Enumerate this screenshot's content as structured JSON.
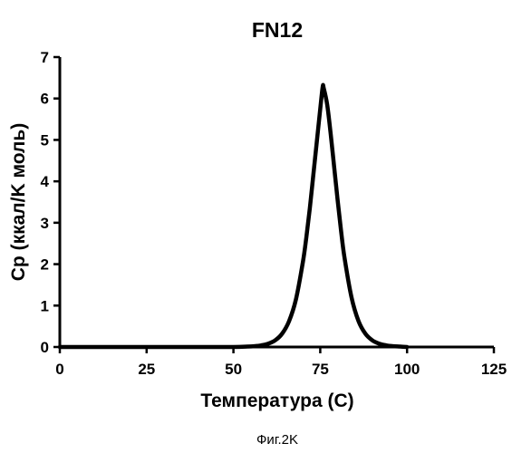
{
  "chart_data": {
    "type": "line",
    "title": "FN12",
    "xlabel": "Температура (C)",
    "ylabel": "Cp (ккал/K моль)",
    "xlim": [
      0,
      125
    ],
    "ylim": [
      0,
      7
    ],
    "xticks": [
      "0",
      "25",
      "50",
      "75",
      "100",
      "125"
    ],
    "yticks": [
      "0",
      "1",
      "2",
      "3",
      "4",
      "5",
      "6",
      "7"
    ],
    "grid": false,
    "legend": "none",
    "line_color": "#000000",
    "series": [
      {
        "x": [
          0,
          10,
          20,
          30,
          40,
          50,
          54,
          56,
          58,
          60,
          62,
          64,
          66,
          68,
          70,
          71,
          72,
          73,
          74,
          75,
          75.7,
          76,
          77,
          78,
          79,
          80,
          81,
          82,
          84,
          86,
          88,
          90,
          92,
          94,
          96,
          98,
          100
        ],
        "y": [
          0,
          0,
          0,
          0,
          0,
          0,
          0.01,
          0.02,
          0.04,
          0.08,
          0.16,
          0.32,
          0.62,
          1.15,
          2.05,
          2.65,
          3.35,
          4.15,
          4.95,
          5.75,
          6.28,
          6.25,
          5.85,
          5.15,
          4.35,
          3.55,
          2.8,
          2.15,
          1.2,
          0.63,
          0.32,
          0.16,
          0.08,
          0.04,
          0.02,
          0.01,
          0
        ]
      }
    ]
  },
  "caption": "Фиг.2K"
}
